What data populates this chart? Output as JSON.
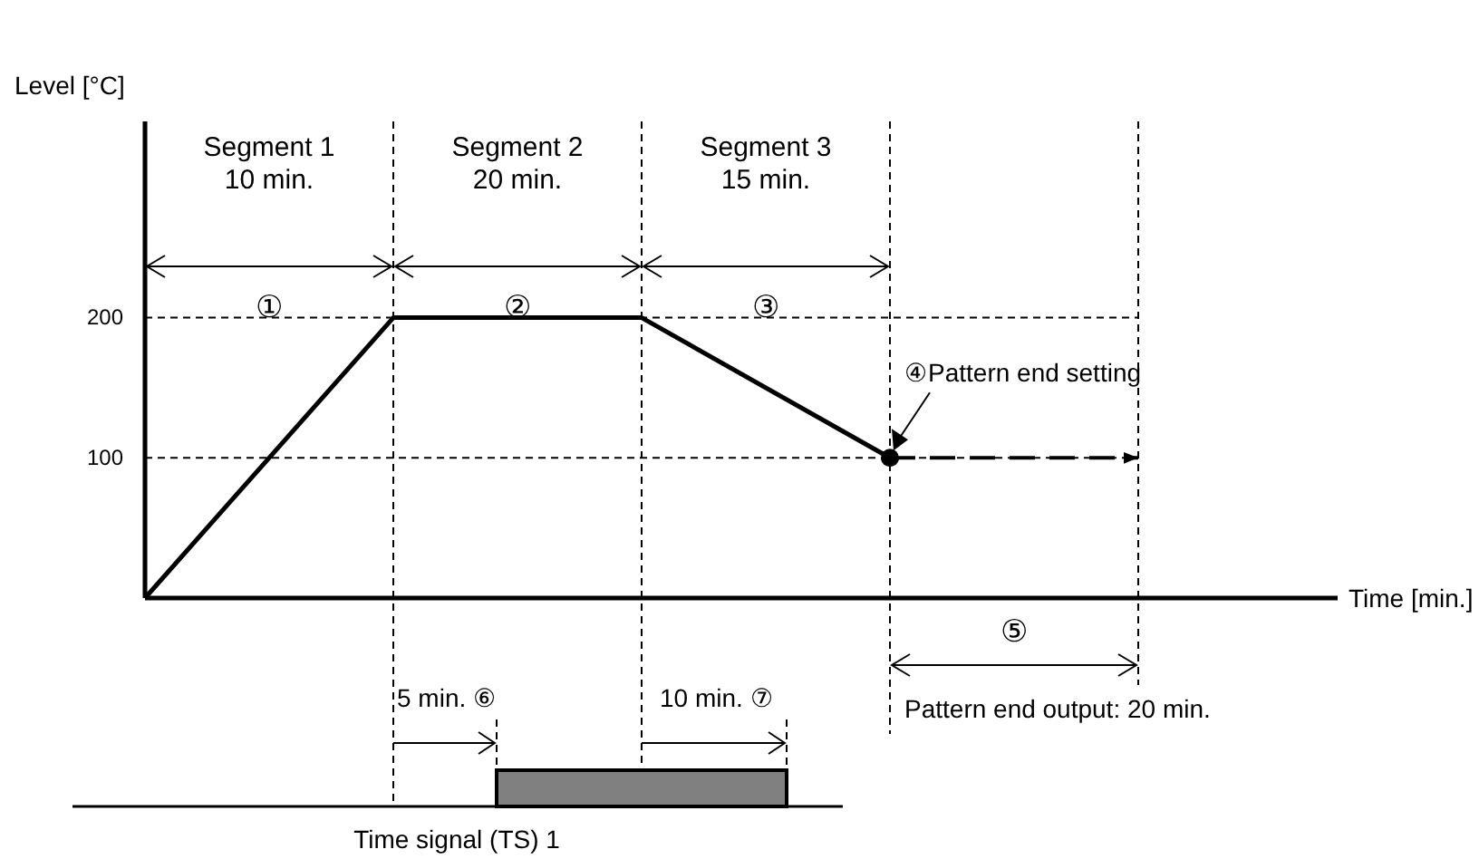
{
  "chart_data": {
    "type": "line",
    "ylabel": "Level [°C]",
    "categories": [
      null,
      null,
      null,
      null,
      null
    ],
    "ylim": [
      0,
      340
    ],
    "yticks": [
      100,
      200
    ],
    "tick_labels": "y",
    "grid": true,
    "line_style": "solid",
    "series": [
      {
        "values": [
          0,
          200,
          200,
          100,
          null
        ],
        "color": "#000000"
      },
      {
        "values": [
          null,
          null,
          null,
          100,
          100
        ],
        "color": "#000000",
        "line_style": "dashed"
      }
    ],
    "annotations": [
      "Segment 1\n10 min.",
      "Segment 2\n20 min.",
      "Segment 3\n15 min.",
      "①",
      "②",
      "③",
      "④Pattern end setting",
      "5 min. ⑥",
      "10 min. ⑦",
      "⑤",
      "Pattern end output: 20 min.",
      "Time signal (TS) 1",
      "Time [min.]"
    ]
  }
}
